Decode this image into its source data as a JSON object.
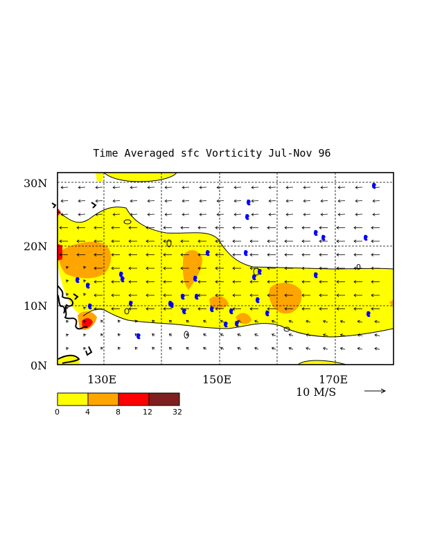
{
  "title": "Time Averaged sfc Vorticity  Jul-Nov  96",
  "map": {
    "lat_labels": [
      "30N",
      "20N",
      "10N",
      "0N"
    ],
    "lon_labels": [
      "130E",
      "150E",
      "170E"
    ],
    "lat_range": [
      0,
      32
    ],
    "lon_range": [
      120,
      178
    ],
    "contour_zero_label": "0"
  },
  "vector_key": {
    "label": "10 M/S"
  },
  "legend": {
    "bins": [
      {
        "from": "0",
        "to": "4",
        "color": "#ffff00"
      },
      {
        "from": "4",
        "to": "8",
        "color": "#ffa500"
      },
      {
        "from": "8",
        "to": "12",
        "color": "#ff0000"
      },
      {
        "from": "12",
        "to": "32",
        "color": "#8b1a1a"
      }
    ],
    "tick_labels": [
      "0",
      "4",
      "8",
      "12",
      "32"
    ]
  },
  "colors": {
    "yellow": "#ffff00",
    "orange": "#ffa500",
    "red": "#ff0000",
    "darkred": "#7f1f1f",
    "storm": "#0000ff"
  }
}
